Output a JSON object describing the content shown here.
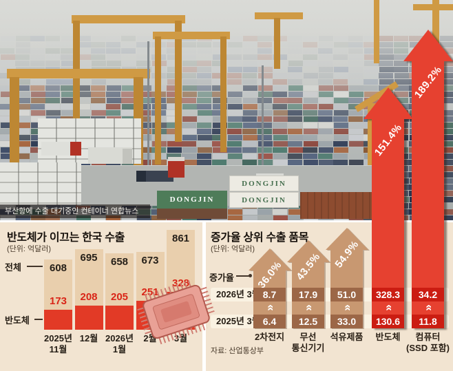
{
  "photo": {
    "caption": "부산항에 수출 대기중인 컨테이너 연합뉴스",
    "container_labels": [
      "DONGJIN",
      "DONGJIN",
      "DONGJIN"
    ]
  },
  "colors": {
    "accent_red": "#e23a26",
    "bar_beige": "#e9cfad",
    "arrow_brown": "#c89871",
    "band_brown": "#9c6747",
    "arrow_red": "#e64130",
    "band_red": "#cb1d12",
    "panel_bg": "#f2e4d1",
    "pill_bg": "#faf2e2",
    "crane_amber": "#cf9a44"
  },
  "chart_data": [
    {
      "type": "bar",
      "title": "반도체가 이끄는 한국 수출",
      "unit_label": "(단위: 억달러)",
      "categories": [
        "2025년\n11월",
        "12월",
        "2026년\n1월",
        "2월",
        "3월"
      ],
      "series": [
        {
          "name": "전체",
          "values": [
            608,
            695,
            658,
            673,
            861
          ]
        },
        {
          "name": "반도체",
          "values": [
            173,
            208,
            205,
            251,
            328
          ]
        }
      ],
      "ylim": [
        0,
        900
      ],
      "legend_position": "left",
      "grid": false
    },
    {
      "type": "bar",
      "title": "증가율 상위 수출 품목",
      "unit_label": "(단위: 억달러)",
      "growth_label": "증가율",
      "categories": [
        "2차전지",
        "무선\n통신기기",
        "석유제품",
        "반도체",
        "컴퓨터\n(SSD 포함)"
      ],
      "growth_pct": [
        36.0,
        43.5,
        54.9,
        151.4,
        189.2
      ],
      "rows": [
        {
          "label": "2026년 3월",
          "values": [
            8.7,
            17.9,
            51.0,
            328.3,
            34.2
          ]
        },
        {
          "label": "2025년 3월",
          "values": [
            6.4,
            12.5,
            33.0,
            130.6,
            11.8
          ]
        }
      ],
      "source": "자료: 산업통상부",
      "grid": false
    }
  ]
}
